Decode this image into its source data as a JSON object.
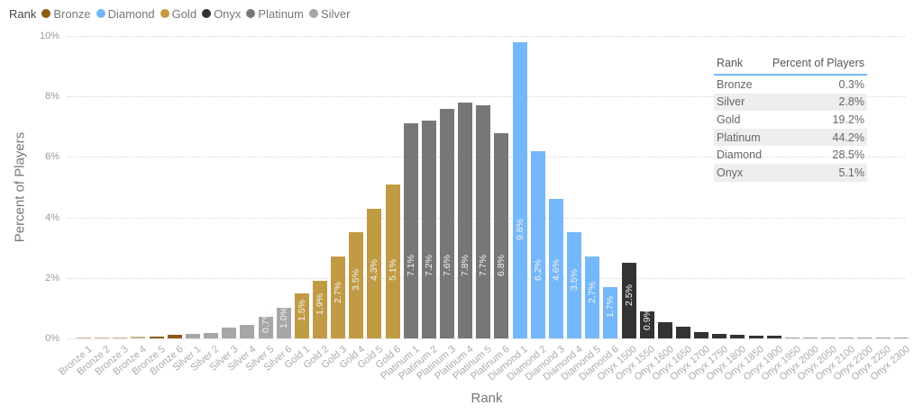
{
  "legend": {
    "title": "Rank",
    "items": [
      {
        "label": "Bronze",
        "color": "#8e5a12"
      },
      {
        "label": "Diamond",
        "color": "#74b7fa"
      },
      {
        "label": "Gold",
        "color": "#c19a44"
      },
      {
        "label": "Onyx",
        "color": "#333333"
      },
      {
        "label": "Platinum",
        "color": "#777777"
      },
      {
        "label": "Silver",
        "color": "#a6a6a6"
      }
    ]
  },
  "axes": {
    "ylabel": "Percent of Players",
    "xlabel": "Rank",
    "yticks": [
      "0%",
      "2%",
      "4%",
      "6%",
      "8%",
      "10%"
    ]
  },
  "table": {
    "headers": [
      "Rank",
      "Percent of Players"
    ],
    "rows": [
      {
        "rank": "Bronze",
        "pct": "0.3%"
      },
      {
        "rank": "Silver",
        "pct": "2.8%"
      },
      {
        "rank": "Gold",
        "pct": "19.2%"
      },
      {
        "rank": "Platinum",
        "pct": "44.2%"
      },
      {
        "rank": "Diamond",
        "pct": "28.5%"
      },
      {
        "rank": "Onyx",
        "pct": "5.1%"
      }
    ]
  },
  "chart_data": {
    "type": "bar",
    "title": "",
    "xlabel": "Rank",
    "ylabel": "Percent of Players",
    "ylim": [
      0,
      10
    ],
    "grid": true,
    "legend_position": "top-left",
    "legend": [
      "Bronze",
      "Diamond",
      "Gold",
      "Onyx",
      "Platinum",
      "Silver"
    ],
    "categories": [
      "Bronze 1",
      "Bronze 2",
      "Bronze 3",
      "Bronze 4",
      "Bronze 5",
      "Bronze 6",
      "Silver 1",
      "Silver 2",
      "Silver 3",
      "Silver 4",
      "Silver 5",
      "Silver 6",
      "Gold 1",
      "Gold 2",
      "Gold 3",
      "Gold 4",
      "Gold 5",
      "Gold 6",
      "Platinum 1",
      "Platinum 2",
      "Platinum 3",
      "Platinum 4",
      "Platinum 5",
      "Platinum 6",
      "Diamond 1",
      "Diamond 2",
      "Diamond 3",
      "Diamond 4",
      "Diamond 5",
      "Diamond 6",
      "Onyx 1500",
      "Onyx 1550",
      "Onyx 1600",
      "Onyx 1650",
      "Onyx 1700",
      "Onyx 1750",
      "Onyx 1800",
      "Onyx 1850",
      "Onyx 1900",
      "Onyx 1950",
      "Onyx 2000",
      "Onyx 2050",
      "Onyx 2100",
      "Onyx 2200",
      "Onyx 2250",
      "Onyx 2300"
    ],
    "groups": [
      "Bronze",
      "Bronze",
      "Bronze",
      "Bronze",
      "Bronze",
      "Bronze",
      "Silver",
      "Silver",
      "Silver",
      "Silver",
      "Silver",
      "Silver",
      "Gold",
      "Gold",
      "Gold",
      "Gold",
      "Gold",
      "Gold",
      "Platinum",
      "Platinum",
      "Platinum",
      "Platinum",
      "Platinum",
      "Platinum",
      "Diamond",
      "Diamond",
      "Diamond",
      "Diamond",
      "Diamond",
      "Diamond",
      "Onyx",
      "Onyx",
      "Onyx",
      "Onyx",
      "Onyx",
      "Onyx",
      "Onyx",
      "Onyx",
      "Onyx",
      "Onyx",
      "Onyx",
      "Onyx",
      "Onyx",
      "Onyx",
      "Onyx",
      "Onyx"
    ],
    "values": [
      0.02,
      0.03,
      0.04,
      0.05,
      0.07,
      0.12,
      0.15,
      0.18,
      0.35,
      0.45,
      0.7,
      1.0,
      1.5,
      1.9,
      2.7,
      3.5,
      4.3,
      5.1,
      7.1,
      7.2,
      7.6,
      7.8,
      7.7,
      6.8,
      9.8,
      6.2,
      4.6,
      3.5,
      2.7,
      1.7,
      2.5,
      0.9,
      0.55,
      0.38,
      0.22,
      0.14,
      0.12,
      0.1,
      0.08,
      0.04,
      0.04,
      0.03,
      0.03,
      0.01,
      0.01,
      0.01
    ],
    "data_labels": [
      "",
      "",
      "",
      "",
      "",
      "",
      "",
      "",
      "",
      "",
      "0.7%",
      "1.0%",
      "1.5%",
      "1.9%",
      "2.7%",
      "3.5%",
      "4.3%",
      "5.1%",
      "7.1%",
      "7.2%",
      "7.6%",
      "7.8%",
      "7.7%",
      "6.8%",
      "9.8%",
      "6.2%",
      "4.6%",
      "3.5%",
      "2.7%",
      "1.7%",
      "2.5%",
      "0.9%",
      "",
      "",
      "",
      "",
      "",
      "",
      "",
      "",
      "",
      "",
      "",
      "",
      "",
      ""
    ],
    "colors": {
      "Bronze": "#8e5a12",
      "Silver": "#a6a6a6",
      "Gold": "#c19a44",
      "Platinum": "#777777",
      "Diamond": "#74b7fa",
      "Onyx": "#333333"
    },
    "summary_table": [
      {
        "rank": "Bronze",
        "percent": 0.3
      },
      {
        "rank": "Silver",
        "percent": 2.8
      },
      {
        "rank": "Gold",
        "percent": 19.2
      },
      {
        "rank": "Platinum",
        "percent": 44.2
      },
      {
        "rank": "Diamond",
        "percent": 28.5
      },
      {
        "rank": "Onyx",
        "percent": 5.1
      }
    ]
  }
}
